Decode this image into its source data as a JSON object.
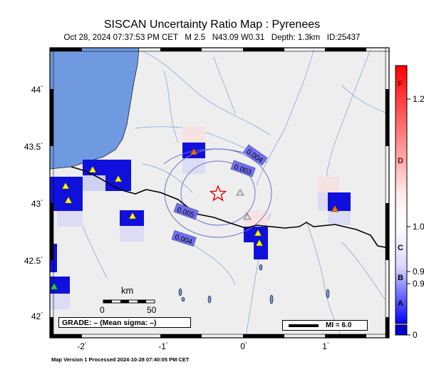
{
  "title": "SISCAN Uncertainty Ratio Map : Pyrenees",
  "subtitle": "Oct 28, 2024 07:37:53 PM CET   M 2.5   N43.09 W0.31   Depth: 1.3km   ID:25437",
  "footer": "Map Version 1 Processed 2024-10-28 07:40:05 PM CET",
  "map": {
    "lat_labels": [
      "44",
      "43.5",
      "43",
      "42.5",
      "42"
    ],
    "lon_labels": [
      "-2",
      "-1",
      "0",
      "1"
    ],
    "degree_mark": "°",
    "contours": [
      "0.004",
      "0.003",
      "0.005",
      "0.004"
    ],
    "scale_unit": "km",
    "scale_start": "0",
    "scale_end": "50",
    "grade_text": "GRADE: – (Mean sigma: –)",
    "mi_text": "MI = 6.0",
    "epicenter_icon": "star-icon",
    "station_icon": "triangle-icon"
  },
  "colorbar": {
    "grades": [
      "F",
      "D",
      "C",
      "B",
      "A"
    ],
    "values": [
      "1.2",
      "1.0",
      "0.9",
      "0.9",
      "0"
    ],
    "colors": {
      "high": "#ff0000",
      "mid": "#ffffff",
      "low": "#0000ff",
      "bottom": "#0000cc"
    }
  },
  "colors": {
    "ocean": "#6f9ae0",
    "land": "#eeeeee",
    "rivers": "#8fb2dc",
    "border": "#000000",
    "contour": "#7070d0"
  }
}
